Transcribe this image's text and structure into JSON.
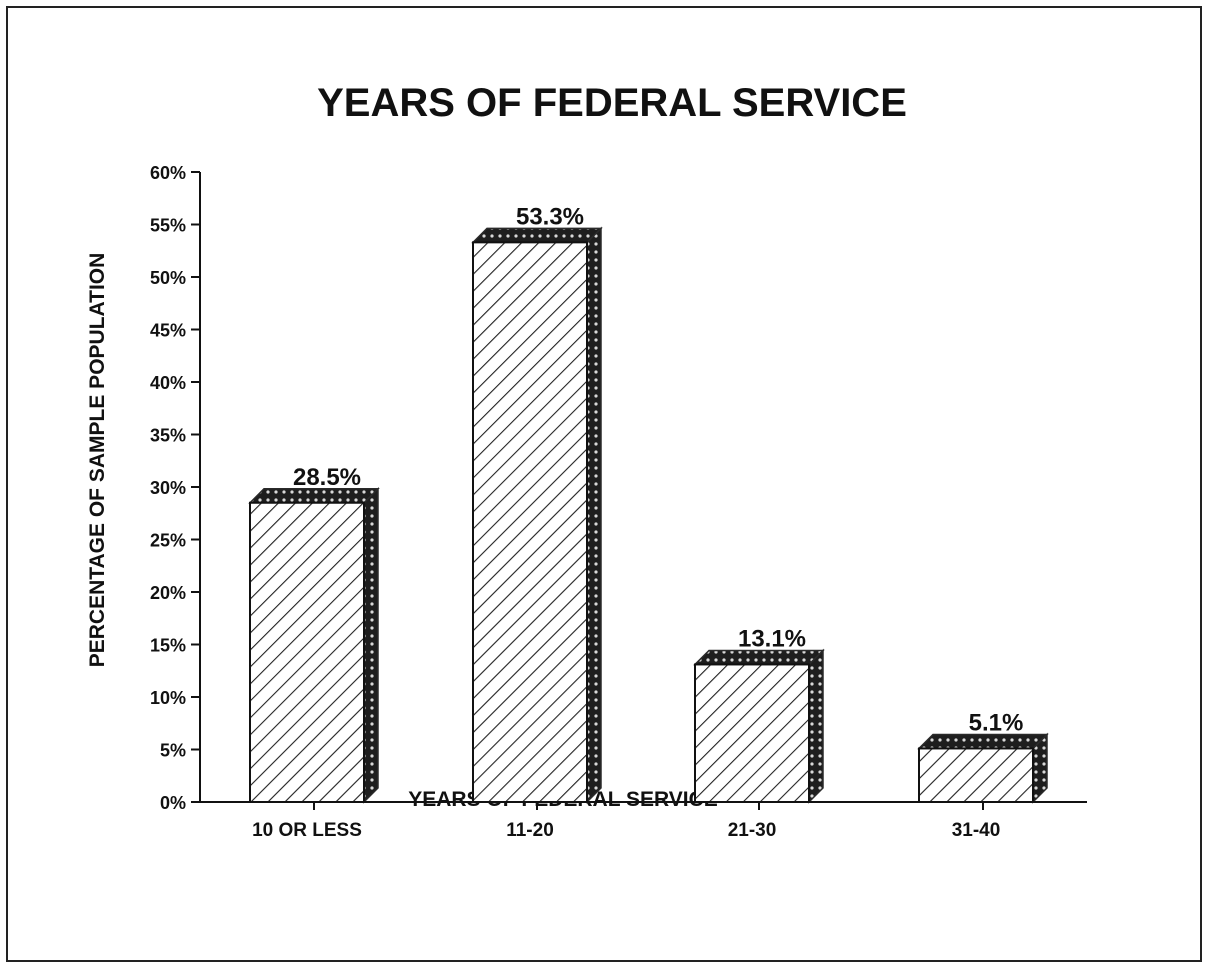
{
  "chart_data": {
    "type": "bar",
    "title": "YEARS OF FEDERAL SERVICE",
    "xlabel": "YEARS OF FEDERAL SERVICE",
    "ylabel": "PERCENTAGE OF SAMPLE POPULATION",
    "categories": [
      "10 OR LESS",
      "11-20",
      "21-30",
      "31-40"
    ],
    "values": [
      28.5,
      53.3,
      13.1,
      5.1
    ],
    "data_labels": [
      "28.5%",
      "53.3%",
      "13.1%",
      "5.1%"
    ],
    "ylim": [
      0,
      60
    ],
    "yticks": [
      0,
      5,
      10,
      15,
      20,
      25,
      30,
      35,
      40,
      45,
      50,
      55,
      60
    ],
    "ytick_labels": [
      "0%",
      "5%",
      "10%",
      "15%",
      "20%",
      "25%",
      "30%",
      "35%",
      "40%",
      "45%",
      "50%",
      "55%",
      "60%"
    ],
    "grid": false,
    "legend": "none",
    "colors": {
      "bar_face": "#ffffff",
      "bar_hatch": "#222222",
      "bar_side": "#2a2a2a",
      "axis": "#111111"
    }
  }
}
